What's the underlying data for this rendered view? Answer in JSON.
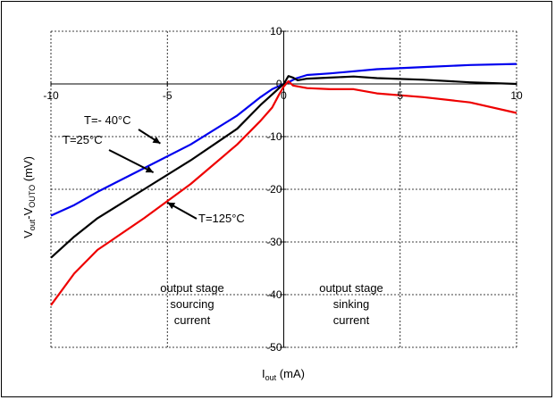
{
  "chart_data": {
    "type": "line",
    "xlabel": {
      "main": "I",
      "sub": "out",
      "unit": " (mA)"
    },
    "ylabel": {
      "main": "V",
      "sub1": "out",
      "mid": "-V",
      "sub2": "OUTO",
      "unit": " (mV)"
    },
    "xlim": [
      -10,
      10
    ],
    "ylim": [
      -50,
      10
    ],
    "x_ticks": [
      "-10",
      "-5",
      "0",
      "5",
      "10"
    ],
    "y_ticks": [
      "10",
      "0",
      "-10",
      "-20",
      "-30",
      "-40",
      "-50"
    ],
    "grid": true,
    "series": [
      {
        "name": "T=- 40°C",
        "color": "#0000ee",
        "points": [
          [
            -10,
            -25
          ],
          [
            -9,
            -23
          ],
          [
            -8,
            -20.5
          ],
          [
            -6,
            -16
          ],
          [
            -4,
            -11.5
          ],
          [
            -2,
            -6
          ],
          [
            -1,
            -2.5
          ],
          [
            -0.5,
            -1
          ],
          [
            0,
            0
          ],
          [
            0.2,
            0.3
          ],
          [
            0.5,
            1
          ],
          [
            1,
            1.7
          ],
          [
            2,
            2
          ],
          [
            4,
            2.8
          ],
          [
            6,
            3.2
          ],
          [
            8,
            3.6
          ],
          [
            10,
            3.8
          ]
        ]
      },
      {
        "name": "T=25°C",
        "color": "#000000",
        "points": [
          [
            -10,
            -33
          ],
          [
            -9,
            -29
          ],
          [
            -8,
            -25.5
          ],
          [
            -6,
            -20
          ],
          [
            -4,
            -14.5
          ],
          [
            -2,
            -8.5
          ],
          [
            -1,
            -4
          ],
          [
            -0.5,
            -2
          ],
          [
            -0.2,
            -0.8
          ],
          [
            0,
            0
          ],
          [
            0.2,
            1.5
          ],
          [
            0.4,
            1.2
          ],
          [
            0.6,
            0.7
          ],
          [
            1,
            1
          ],
          [
            2,
            1.2
          ],
          [
            3,
            1.4
          ],
          [
            4,
            1.1
          ],
          [
            6,
            0.8
          ],
          [
            8,
            0.3
          ],
          [
            10,
            0
          ]
        ]
      },
      {
        "name": "T=125°C",
        "color": "#ee0000",
        "points": [
          [
            -10,
            -42
          ],
          [
            -9,
            -36
          ],
          [
            -8,
            -31.5
          ],
          [
            -6,
            -25.5
          ],
          [
            -4,
            -19
          ],
          [
            -2,
            -11.5
          ],
          [
            -1,
            -7
          ],
          [
            -0.5,
            -4.5
          ],
          [
            -0.2,
            -2
          ],
          [
            0,
            -0.5
          ],
          [
            0.2,
            0.5
          ],
          [
            0.4,
            -0.3
          ],
          [
            1,
            -0.8
          ],
          [
            2,
            -1
          ],
          [
            3,
            -1
          ],
          [
            4,
            -1.8
          ],
          [
            6,
            -2.5
          ],
          [
            8,
            -3.5
          ],
          [
            10,
            -5.5
          ]
        ]
      }
    ],
    "annotations": [
      {
        "text": "T=- 40°C",
        "series": 0,
        "arrow_to": [
          -5.3,
          -11.3
        ]
      },
      {
        "text": "T=25°C",
        "series": 1,
        "arrow_to": [
          -5.6,
          -16.8
        ]
      },
      {
        "text": "T=125°C",
        "series": 2,
        "arrow_to": [
          -5,
          -22.5
        ]
      }
    ],
    "region_labels": [
      {
        "lines": [
          "output stage",
          "sourcing",
          "current"
        ]
      },
      {
        "lines": [
          "output stage",
          "sinking",
          "current"
        ]
      }
    ]
  }
}
